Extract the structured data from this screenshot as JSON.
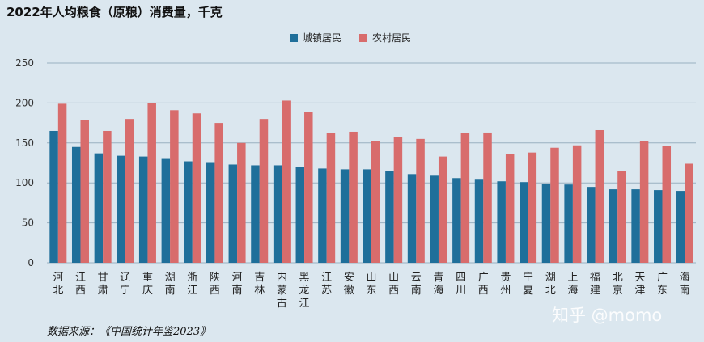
{
  "title": "2022年人均粮食（原粮）消费量，千克",
  "legend": {
    "urban_label": "城镇居民",
    "rural_label": "农村居民"
  },
  "source": "数据来源：《中国统计年鉴2023》",
  "watermark": "知乎 @momo",
  "colors": {
    "urban": "#1f6f9a",
    "rural": "#d86c6c",
    "grid": "#9ab0c0"
  },
  "chart_data": {
    "type": "bar",
    "title": "2022年人均粮食（原粮）消费量，千克",
    "ylim": [
      0,
      250
    ],
    "yticks": [
      0,
      50,
      100,
      150,
      200,
      250
    ],
    "grid": true,
    "legend_position": "top-center",
    "categories": [
      "河北",
      "江西",
      "甘肃",
      "辽宁",
      "重庆",
      "湖南",
      "浙江",
      "陕西",
      "河南",
      "吉林",
      "内蒙古",
      "黑龙江",
      "江苏",
      "安徽",
      "山东",
      "山西",
      "云南",
      "青海",
      "四川",
      "广西",
      "贵州",
      "宁夏",
      "湖北",
      "上海",
      "福建",
      "北京",
      "天津",
      "广东",
      "海南"
    ],
    "series": [
      {
        "name": "城镇居民",
        "values": [
          165,
          145,
          137,
          134,
          133,
          130,
          127,
          126,
          123,
          122,
          122,
          120,
          118,
          117,
          117,
          115,
          111,
          109,
          106,
          104,
          102,
          101,
          99,
          98,
          95,
          92,
          92,
          91,
          90
        ]
      },
      {
        "name": "农村居民",
        "values": [
          199,
          179,
          165,
          180,
          200,
          191,
          187,
          175,
          150,
          180,
          203,
          189,
          162,
          164,
          152,
          157,
          155,
          133,
          162,
          163,
          136,
          138,
          144,
          147,
          166,
          115,
          152,
          146,
          124
        ]
      }
    ]
  }
}
